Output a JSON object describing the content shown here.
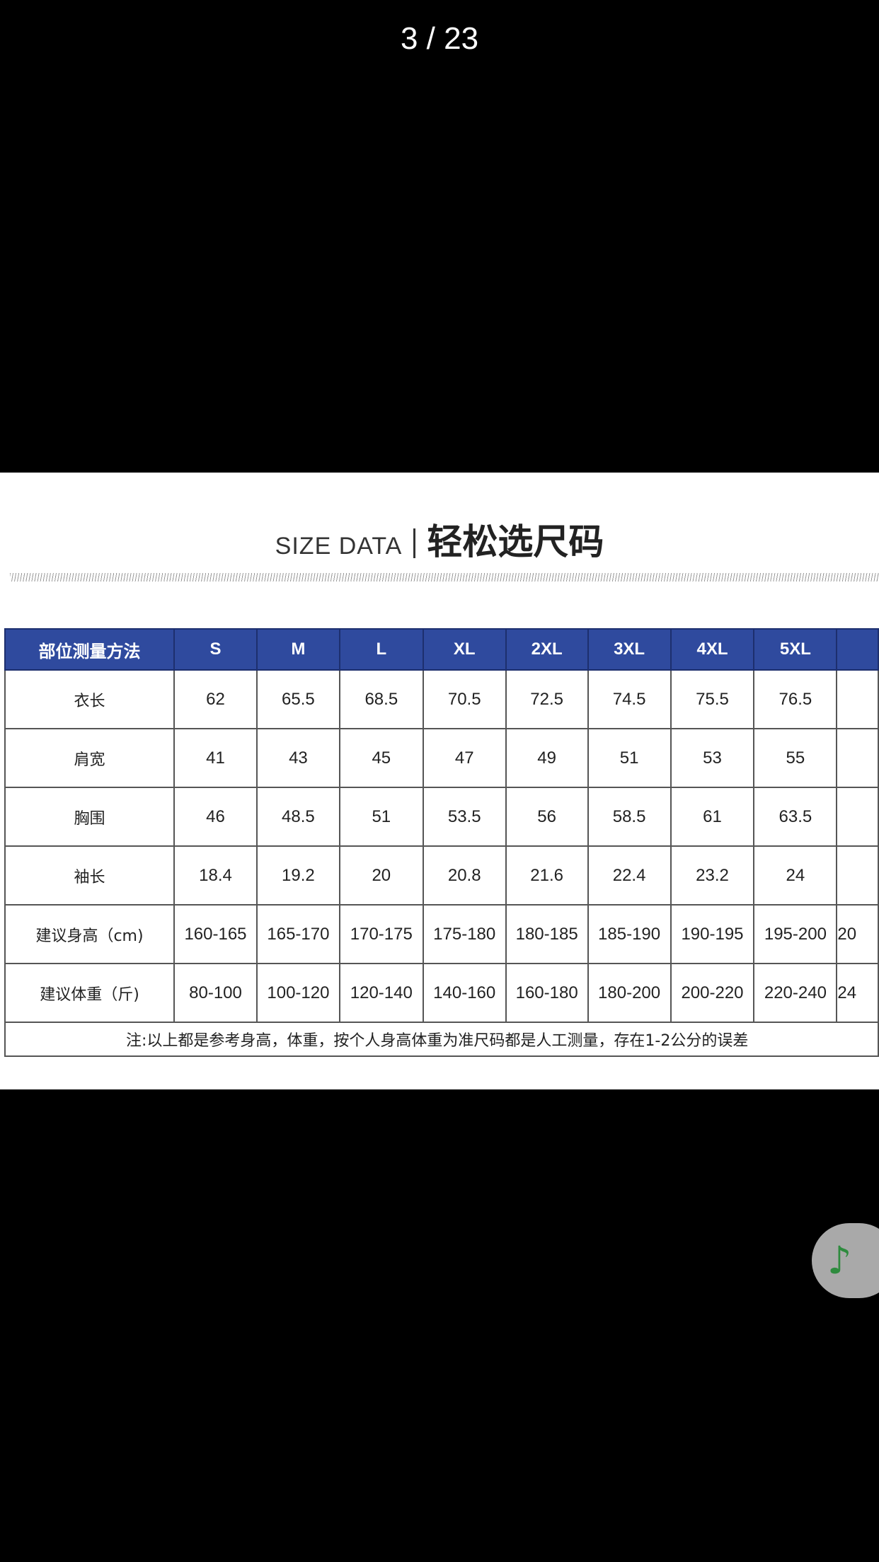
{
  "viewer": {
    "counter": "3 / 23"
  },
  "image": {
    "title_en": "SIZE DATA",
    "title_zh": "轻松选尺码",
    "header": [
      "部位测量方法",
      "S",
      "M",
      "L",
      "XL",
      "2XL",
      "3XL",
      "4XL",
      "5XL",
      ""
    ],
    "rows": [
      {
        "label": "衣长",
        "values": [
          "62",
          "65.5",
          "68.5",
          "70.5",
          "72.5",
          "74.5",
          "75.5",
          "76.5",
          ""
        ]
      },
      {
        "label": "肩宽",
        "values": [
          "41",
          "43",
          "45",
          "47",
          "49",
          "51",
          "53",
          "55",
          ""
        ]
      },
      {
        "label": "胸围",
        "values": [
          "46",
          "48.5",
          "51",
          "53.5",
          "56",
          "58.5",
          "61",
          "63.5",
          ""
        ]
      },
      {
        "label": "袖长",
        "values": [
          "18.4",
          "19.2",
          "20",
          "20.8",
          "21.6",
          "22.4",
          "23.2",
          "24",
          ""
        ]
      },
      {
        "label": "建议身高（cm)",
        "values": [
          "160-165",
          "165-170",
          "170-175",
          "175-180",
          "180-185",
          "185-190",
          "190-195",
          "195-200",
          "20"
        ]
      },
      {
        "label": "建议体重（斤)",
        "values": [
          "80-100",
          "100-120",
          "120-140",
          "140-160",
          "160-180",
          "180-200",
          "200-220",
          "220-240",
          "24"
        ]
      }
    ],
    "note": "注:以上都是参考身高，体重，按个人身高体重为准尺码都是人工测量，存在1-2公分的误差",
    "header_color": "#2f4a9e"
  },
  "music_button": {
    "icon": "music-note-icon",
    "color": "#2e8b3e"
  }
}
